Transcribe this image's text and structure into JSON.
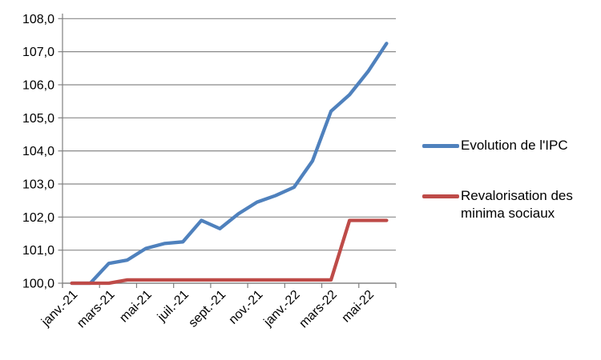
{
  "chart_data": {
    "type": "line",
    "title": "",
    "n_points": 18,
    "x_tick_labels": [
      "janv.-21",
      "mars-21",
      "mai-21",
      "juil.-21",
      "sept.-21",
      "nov.-21",
      "janv.-22",
      "mars-22",
      "mai-22"
    ],
    "x_tick_every": 2,
    "y_tick_labels": [
      "100,0",
      "101,0",
      "102,0",
      "103,0",
      "104,0",
      "105,0",
      "106,0",
      "107,0",
      "108,0"
    ],
    "ylim": [
      100,
      108
    ],
    "ytick_step": 1,
    "grid": true,
    "legend_position": "right",
    "series": [
      {
        "name": "Evolution de l'IPC",
        "color": "#4F81BD",
        "values": [
          100.0,
          100.0,
          100.6,
          100.7,
          101.05,
          101.2,
          101.25,
          101.9,
          101.65,
          102.1,
          102.45,
          102.65,
          102.9,
          103.7,
          105.2,
          105.7,
          106.4,
          107.25
        ]
      },
      {
        "name": "Revalorisation des minima sociaux",
        "color": "#BE4B48",
        "values": [
          100.0,
          100.0,
          100.0,
          100.1,
          100.1,
          100.1,
          100.1,
          100.1,
          100.1,
          100.1,
          100.1,
          100.1,
          100.1,
          100.1,
          100.1,
          101.9,
          101.9,
          101.9
        ]
      }
    ]
  },
  "style_colors": {
    "gridline": "#898989",
    "axis": "#808080",
    "tick_text": "#000000"
  }
}
